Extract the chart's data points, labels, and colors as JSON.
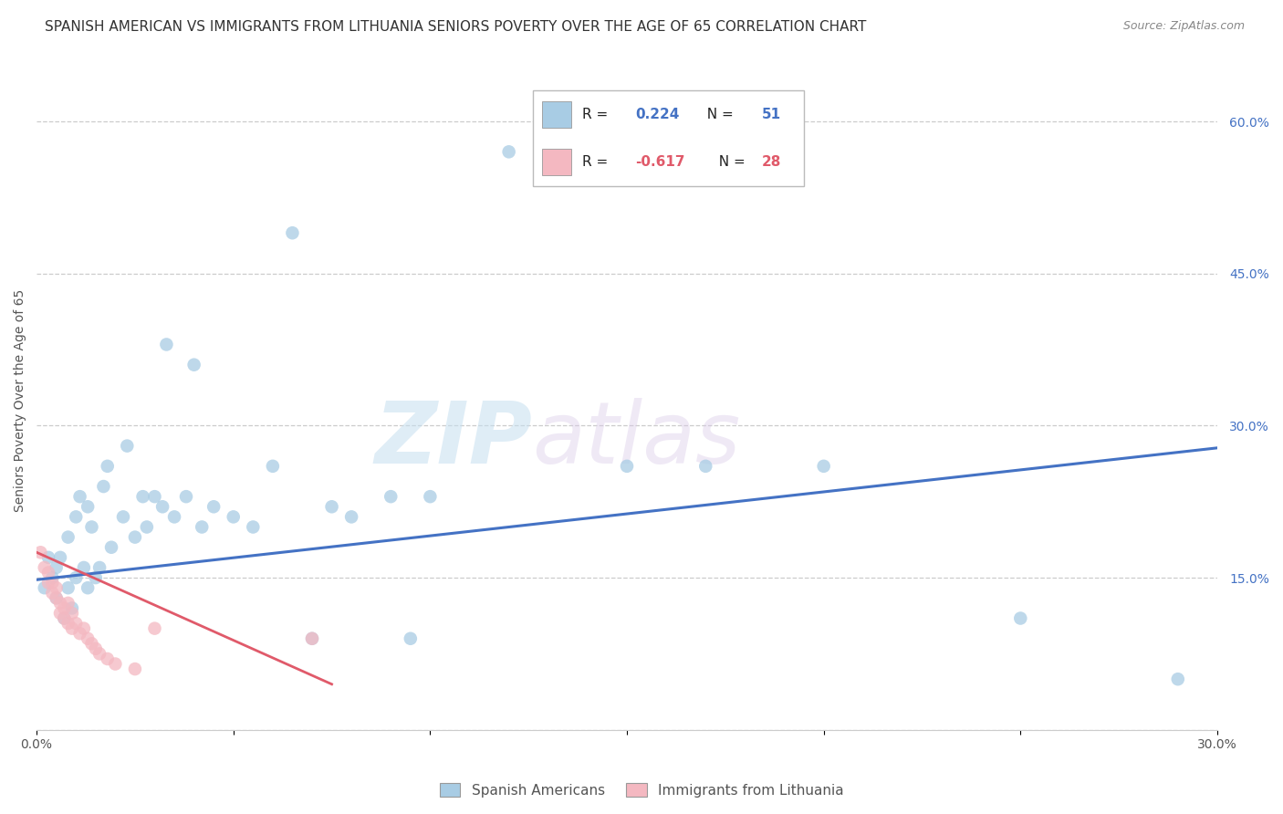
{
  "title": "SPANISH AMERICAN VS IMMIGRANTS FROM LITHUANIA SENIORS POVERTY OVER THE AGE OF 65 CORRELATION CHART",
  "source": "Source: ZipAtlas.com",
  "ylabel": "Seniors Poverty Over the Age of 65",
  "xlim": [
    0.0,
    0.3
  ],
  "ylim": [
    0.0,
    0.65
  ],
  "x_ticks": [
    0.0,
    0.05,
    0.1,
    0.15,
    0.2,
    0.25,
    0.3
  ],
  "x_tick_labels": [
    "0.0%",
    "",
    "",
    "",
    "",
    "",
    "30.0%"
  ],
  "y_ticks_right": [
    0.0,
    0.15,
    0.3,
    0.45,
    0.6
  ],
  "y_tick_labels_right": [
    "",
    "15.0%",
    "30.0%",
    "45.0%",
    "60.0%"
  ],
  "blue_R": "0.224",
  "blue_N": "51",
  "pink_R": "-0.617",
  "pink_N": "28",
  "legend_label_blue": "Spanish Americans",
  "legend_label_pink": "Immigrants from Lithuania",
  "blue_color": "#a8cce4",
  "pink_color": "#f4b8c1",
  "blue_line_color": "#4472c4",
  "pink_line_color": "#e05a6a",
  "watermark_zip": "ZIP",
  "watermark_atlas": "atlas",
  "blue_line_x": [
    0.0,
    0.3
  ],
  "blue_line_y": [
    0.148,
    0.278
  ],
  "pink_line_x": [
    0.0,
    0.075
  ],
  "pink_line_y": [
    0.175,
    0.045
  ],
  "blue_points_x": [
    0.002,
    0.003,
    0.004,
    0.005,
    0.005,
    0.006,
    0.007,
    0.008,
    0.008,
    0.009,
    0.01,
    0.01,
    0.011,
    0.012,
    0.013,
    0.013,
    0.014,
    0.015,
    0.016,
    0.017,
    0.018,
    0.019,
    0.022,
    0.023,
    0.025,
    0.027,
    0.028,
    0.03,
    0.032,
    0.033,
    0.035,
    0.038,
    0.04,
    0.042,
    0.045,
    0.05,
    0.055,
    0.06,
    0.065,
    0.07,
    0.075,
    0.08,
    0.09,
    0.095,
    0.1,
    0.12,
    0.15,
    0.17,
    0.2,
    0.25,
    0.29
  ],
  "blue_points_y": [
    0.14,
    0.17,
    0.15,
    0.13,
    0.16,
    0.17,
    0.11,
    0.14,
    0.19,
    0.12,
    0.15,
    0.21,
    0.23,
    0.16,
    0.14,
    0.22,
    0.2,
    0.15,
    0.16,
    0.24,
    0.26,
    0.18,
    0.21,
    0.28,
    0.19,
    0.23,
    0.2,
    0.23,
    0.22,
    0.38,
    0.21,
    0.23,
    0.36,
    0.2,
    0.22,
    0.21,
    0.2,
    0.26,
    0.49,
    0.09,
    0.22,
    0.21,
    0.23,
    0.09,
    0.23,
    0.57,
    0.26,
    0.26,
    0.26,
    0.11,
    0.05
  ],
  "pink_points_x": [
    0.001,
    0.002,
    0.003,
    0.003,
    0.004,
    0.004,
    0.005,
    0.005,
    0.006,
    0.006,
    0.007,
    0.007,
    0.008,
    0.008,
    0.009,
    0.009,
    0.01,
    0.011,
    0.012,
    0.013,
    0.014,
    0.015,
    0.016,
    0.018,
    0.02,
    0.025,
    0.03,
    0.07
  ],
  "pink_points_y": [
    0.175,
    0.16,
    0.155,
    0.145,
    0.145,
    0.135,
    0.14,
    0.13,
    0.125,
    0.115,
    0.12,
    0.11,
    0.125,
    0.105,
    0.115,
    0.1,
    0.105,
    0.095,
    0.1,
    0.09,
    0.085,
    0.08,
    0.075,
    0.07,
    0.065,
    0.06,
    0.1,
    0.09
  ],
  "grid_color": "#cccccc",
  "background_color": "#ffffff",
  "title_fontsize": 11,
  "axis_label_fontsize": 10,
  "tick_fontsize": 10,
  "marker_size": 110
}
